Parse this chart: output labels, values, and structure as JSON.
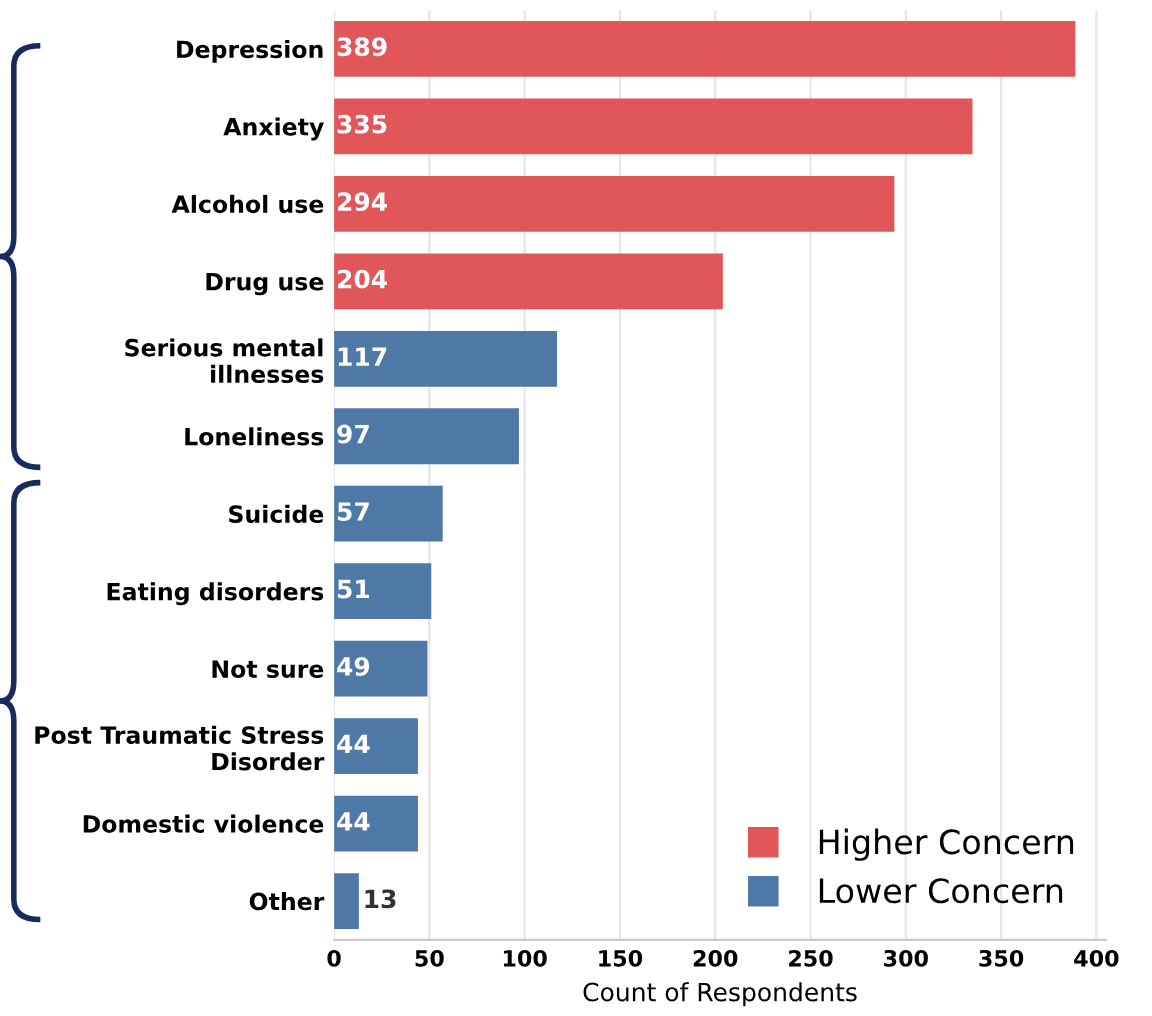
{
  "chart_data": {
    "type": "bar",
    "orientation": "horizontal",
    "xlabel": "Count of Respondents",
    "categories": [
      "Depression",
      "Anxiety",
      "Alcohol use",
      "Drug use",
      "Serious mental illnesses",
      "Loneliness",
      "Suicide",
      "Eating disorders",
      "Not sure",
      "Post Traumatic Stress Disorder",
      "Domestic violence",
      "Other"
    ],
    "series": [
      {
        "name": "Higher Concern",
        "color": "#e15759",
        "values": [
          389,
          335,
          294,
          204,
          null,
          null,
          null,
          null,
          null,
          null,
          null,
          null
        ]
      },
      {
        "name": "Lower Concern",
        "color": "#4e79a7",
        "values": [
          null,
          null,
          null,
          null,
          117,
          97,
          57,
          51,
          49,
          44,
          44,
          13
        ]
      }
    ],
    "data_labels": true,
    "xlim": [
      0,
      405
    ],
    "xticks": [
      0,
      50,
      100,
      150,
      200,
      250,
      300,
      350,
      400
    ],
    "grid": "x",
    "legend": "bottom right"
  }
}
